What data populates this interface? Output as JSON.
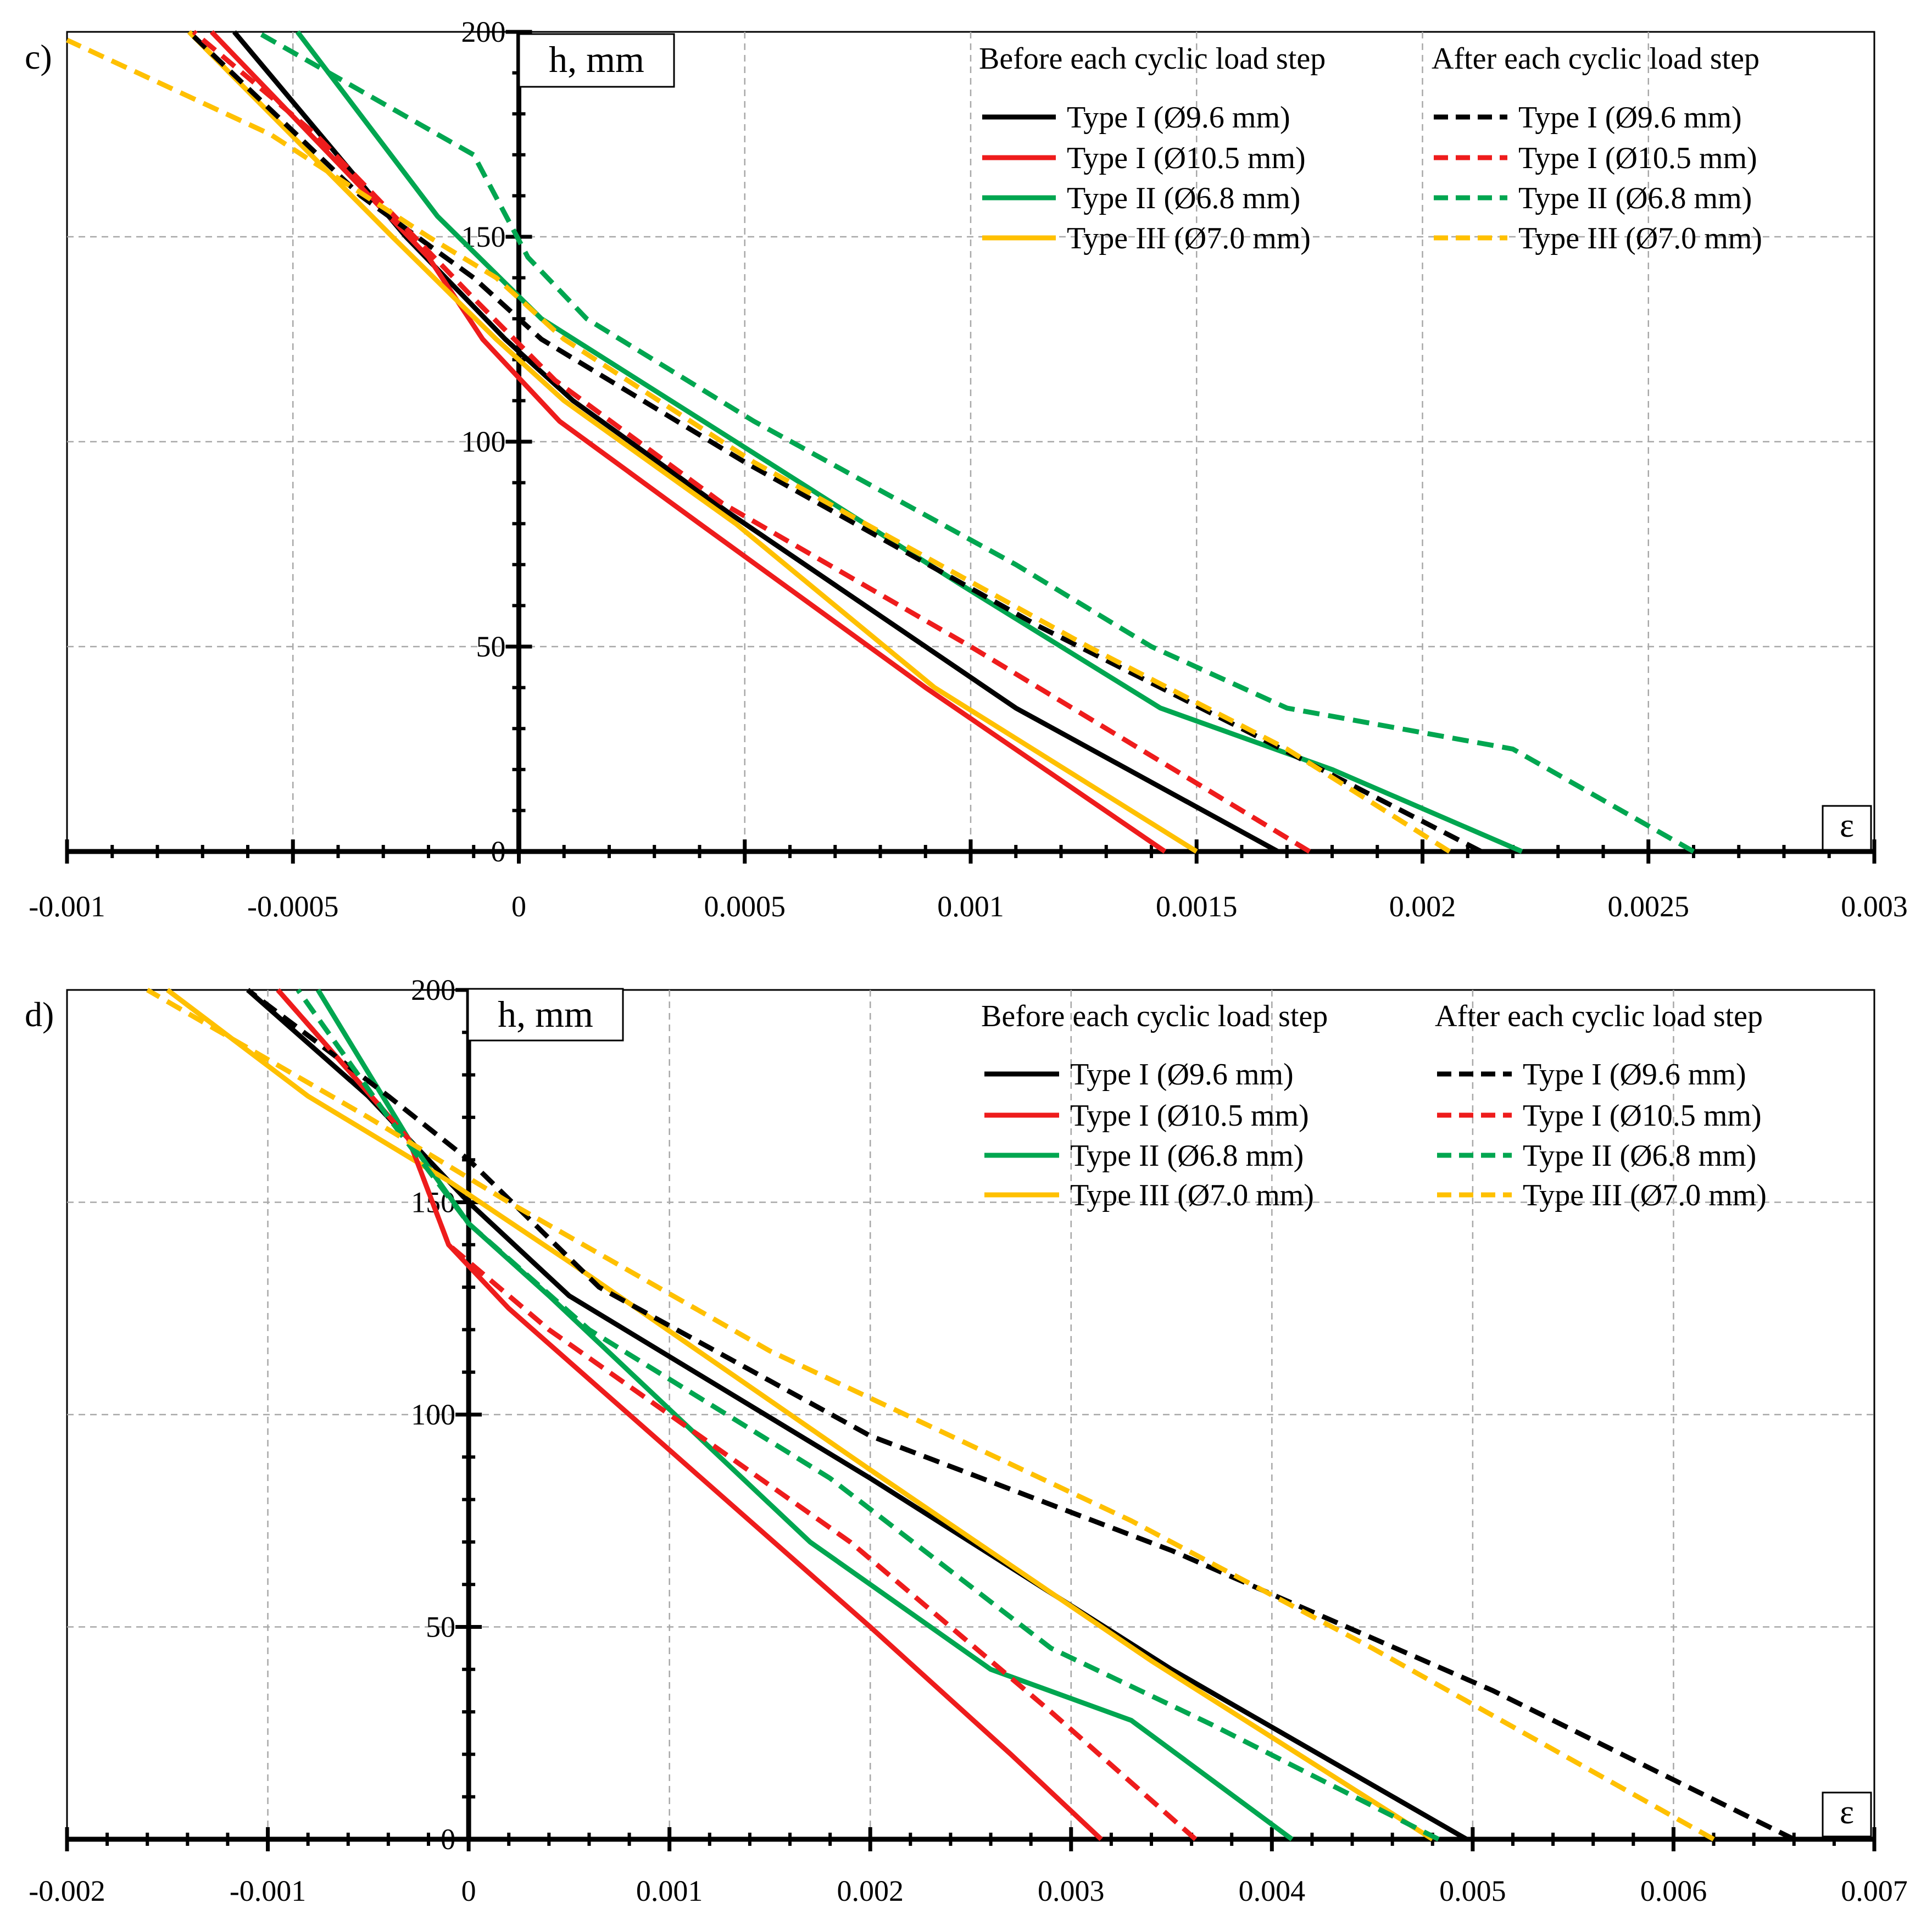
{
  "chart_data": [
    {
      "type": "line",
      "panel_label": "c)",
      "xlabel": "ε",
      "ylabel": "h, mm",
      "xlim": [
        -0.001,
        0.003
      ],
      "ylim": [
        0,
        200
      ],
      "x_ticks": [
        "-0.001",
        "-0.0005",
        "0",
        "0.0005",
        "0.001",
        "0.0015",
        "0.002",
        "0.0025",
        "0.003"
      ],
      "x_tick_values": [
        -0.001,
        -0.0005,
        0,
        0.0005,
        0.001,
        0.0015,
        0.002,
        0.0025,
        0.003
      ],
      "y_ticks": [
        "0",
        "50",
        "100",
        "150",
        "200"
      ],
      "y_tick_values": [
        0,
        50,
        100,
        150,
        200
      ],
      "legend_before_title": "Before each cyclic load step",
      "legend_after_title": "After each cyclic load step",
      "series": [
        {
          "name": "Type I (Ø9.6 mm)",
          "group": "before",
          "color": "#000000",
          "dashed": false,
          "points": [
            [
              0.00168,
              0
            ],
            [
              0.0011,
              35
            ],
            [
              0.00046,
              83
            ],
            [
              0.00012,
              110
            ],
            [
              -3e-05,
              125
            ],
            [
              -0.00025,
              150
            ],
            [
              -0.00063,
              200
            ]
          ]
        },
        {
          "name": "Type I (Ø10.5 mm)",
          "group": "before",
          "color": "#ee1c1c",
          "dashed": false,
          "points": [
            [
              0.00143,
              0
            ],
            [
              0.0009,
              40
            ],
            [
              0.0004,
              80
            ],
            [
              9e-05,
              105
            ],
            [
              -8e-05,
              125
            ],
            [
              -0.0002,
              145
            ],
            [
              -0.00068,
              200
            ]
          ]
        },
        {
          "name": "Type II (Ø6.8 mm)",
          "group": "before",
          "color": "#00a650",
          "dashed": false,
          "points": [
            [
              0.00222,
              0
            ],
            [
              0.0018,
              20
            ],
            [
              0.00142,
              35
            ],
            [
              0.00098,
              65
            ],
            [
              0.00048,
              100
            ],
            [
              5e-05,
              130
            ],
            [
              -0.00018,
              155
            ],
            [
              -0.00049,
              200
            ]
          ]
        },
        {
          "name": "Type III (Ø7.0 mm)",
          "group": "before",
          "color": "#ffc000",
          "dashed": false,
          "points": [
            [
              0.0015,
              0
            ],
            [
              0.00092,
              40
            ],
            [
              0.00048,
              80
            ],
            [
              0.0001,
              110
            ],
            [
              -5e-05,
              125
            ],
            [
              -0.00028,
              150
            ],
            [
              -0.00073,
              200
            ]
          ]
        },
        {
          "name": "Type I (Ø9.6 mm)",
          "group": "after",
          "color": "#000000",
          "dashed": true,
          "points": [
            [
              0.00213,
              0
            ],
            [
              0.0016,
              30
            ],
            [
              0.00115,
              55
            ],
            [
              0.0005,
              95
            ],
            [
              5e-05,
              125
            ],
            [
              -0.0001,
              140
            ],
            [
              -0.00035,
              160
            ],
            [
              -0.00073,
              200
            ]
          ]
        },
        {
          "name": "Type I (Ø10.5 mm)",
          "group": "after",
          "color": "#ee1c1c",
          "dashed": true,
          "points": [
            [
              0.00175,
              0
            ],
            [
              0.001,
              50
            ],
            [
              0.00045,
              85
            ],
            [
              8e-05,
              115
            ],
            [
              -0.0001,
              135
            ],
            [
              -0.00045,
              175
            ],
            [
              -0.00072,
              200
            ]
          ]
        },
        {
          "name": "Type II (Ø6.8 mm)",
          "group": "after",
          "color": "#00a650",
          "dashed": true,
          "points": [
            [
              0.0026,
              0
            ],
            [
              0.0022,
              25
            ],
            [
              0.0017,
              35
            ],
            [
              0.0014,
              50
            ],
            [
              0.0011,
              70
            ],
            [
              0.00052,
              105
            ],
            [
              0.00015,
              130
            ],
            [
              2e-05,
              145
            ],
            [
              -0.0001,
              170
            ],
            [
              -0.00058,
              200
            ]
          ]
        },
        {
          "name": "Type III (Ø7.0 mm)",
          "group": "after",
          "color": "#ffc000",
          "dashed": true,
          "points": [
            [
              0.00206,
              0
            ],
            [
              0.0017,
              25
            ],
            [
              0.00126,
              50
            ],
            [
              0.00052,
              95
            ],
            [
              0.0001,
              125
            ],
            [
              -5e-05,
              140
            ],
            [
              -0.0002,
              150
            ],
            [
              -0.00055,
              175
            ],
            [
              -0.001,
              198
            ]
          ]
        }
      ]
    },
    {
      "type": "line",
      "panel_label": "d)",
      "xlabel": "ε",
      "ylabel": "h, mm",
      "xlim": [
        -0.002,
        0.007
      ],
      "ylim": [
        0,
        200
      ],
      "x_ticks": [
        "-0.002",
        "-0.001",
        "0",
        "0.001",
        "0.002",
        "0.003",
        "0.004",
        "0.005",
        "0.006",
        "0.007"
      ],
      "x_tick_values": [
        -0.002,
        -0.001,
        0,
        0.001,
        0.002,
        0.003,
        0.004,
        0.005,
        0.006,
        0.007
      ],
      "y_ticks": [
        "0",
        "50",
        "100",
        "150",
        "200"
      ],
      "y_tick_values": [
        0,
        50,
        100,
        150,
        200
      ],
      "legend_before_title": "Before each cyclic load step",
      "legend_after_title": "After each cyclic load step",
      "series": [
        {
          "name": "Type I (Ø9.6 mm)",
          "group": "before",
          "color": "#000000",
          "dashed": false,
          "points": [
            [
              0.00497,
              0
            ],
            [
              0.0035,
              40
            ],
            [
              0.002,
              85
            ],
            [
              0.0005,
              128
            ],
            [
              0,
              150
            ],
            [
              -0.0005,
              175
            ],
            [
              -0.0011,
              200
            ]
          ]
        },
        {
          "name": "Type I (Ø10.5 mm)",
          "group": "before",
          "color": "#ee1c1c",
          "dashed": false,
          "points": [
            [
              0.00315,
              0
            ],
            [
              0.0027,
              20
            ],
            [
              0.002,
              50
            ],
            [
              0.0002,
              125
            ],
            [
              -0.0001,
              140
            ],
            [
              -0.0003,
              165
            ],
            [
              -0.00095,
              200
            ]
          ]
        },
        {
          "name": "Type II (Ø6.8 mm)",
          "group": "before",
          "color": "#00a650",
          "dashed": false,
          "points": [
            [
              0.0041,
              0
            ],
            [
              0.0033,
              28
            ],
            [
              0.0026,
              40
            ],
            [
              0.0017,
              70
            ],
            [
              0.0004,
              128
            ],
            [
              0,
              145
            ],
            [
              -0.0003,
              165
            ],
            [
              -0.00075,
              200
            ]
          ]
        },
        {
          "name": "Type III (Ø7.0 mm)",
          "group": "before",
          "color": "#ffc000",
          "dashed": false,
          "points": [
            [
              0.0048,
              0
            ],
            [
              0.0034,
              42
            ],
            [
              0.002,
              87
            ],
            [
              0.0005,
              136
            ],
            [
              -0.0001,
              155
            ],
            [
              -0.0008,
              175
            ],
            [
              -0.0015,
              200
            ]
          ]
        },
        {
          "name": "Type I (Ø9.6 mm)",
          "group": "after",
          "color": "#000000",
          "dashed": true,
          "points": [
            [
              0.0066,
              0
            ],
            [
              0.0051,
              35
            ],
            [
              0.0035,
              68
            ],
            [
              0.002,
              95
            ],
            [
              0.00065,
              130
            ],
            [
              0,
              160
            ],
            [
              -0.0004,
              175
            ],
            [
              -0.0011,
              200
            ]
          ]
        },
        {
          "name": "Type I (Ø10.5 mm)",
          "group": "after",
          "color": "#ee1c1c",
          "dashed": true,
          "points": [
            [
              0.00362,
              0
            ],
            [
              0.0029,
              30
            ],
            [
              0.0019,
              70
            ],
            [
              0.0004,
              120
            ],
            [
              -0.0001,
              140
            ],
            [
              -0.0003,
              165
            ],
            [
              -0.00095,
              200
            ]
          ]
        },
        {
          "name": "Type II (Ø6.8 mm)",
          "group": "after",
          "color": "#00a650",
          "dashed": true,
          "points": [
            [
              0.00483,
              0
            ],
            [
              0.0037,
              27
            ],
            [
              0.0029,
              45
            ],
            [
              0.0018,
              85
            ],
            [
              0.0006,
              120
            ],
            [
              0,
              145
            ],
            [
              -0.0004,
              170
            ],
            [
              -0.00085,
              200
            ]
          ]
        },
        {
          "name": "Type III (Ø7.0 mm)",
          "group": "after",
          "color": "#ffc000",
          "dashed": true,
          "points": [
            [
              0.0062,
              0
            ],
            [
              0.0045,
              45
            ],
            [
              0.0033,
              75
            ],
            [
              0.0015,
              115
            ],
            [
              0.0002,
              150
            ],
            [
              -0.0005,
              170
            ],
            [
              -0.0016,
              200
            ]
          ]
        }
      ]
    }
  ]
}
